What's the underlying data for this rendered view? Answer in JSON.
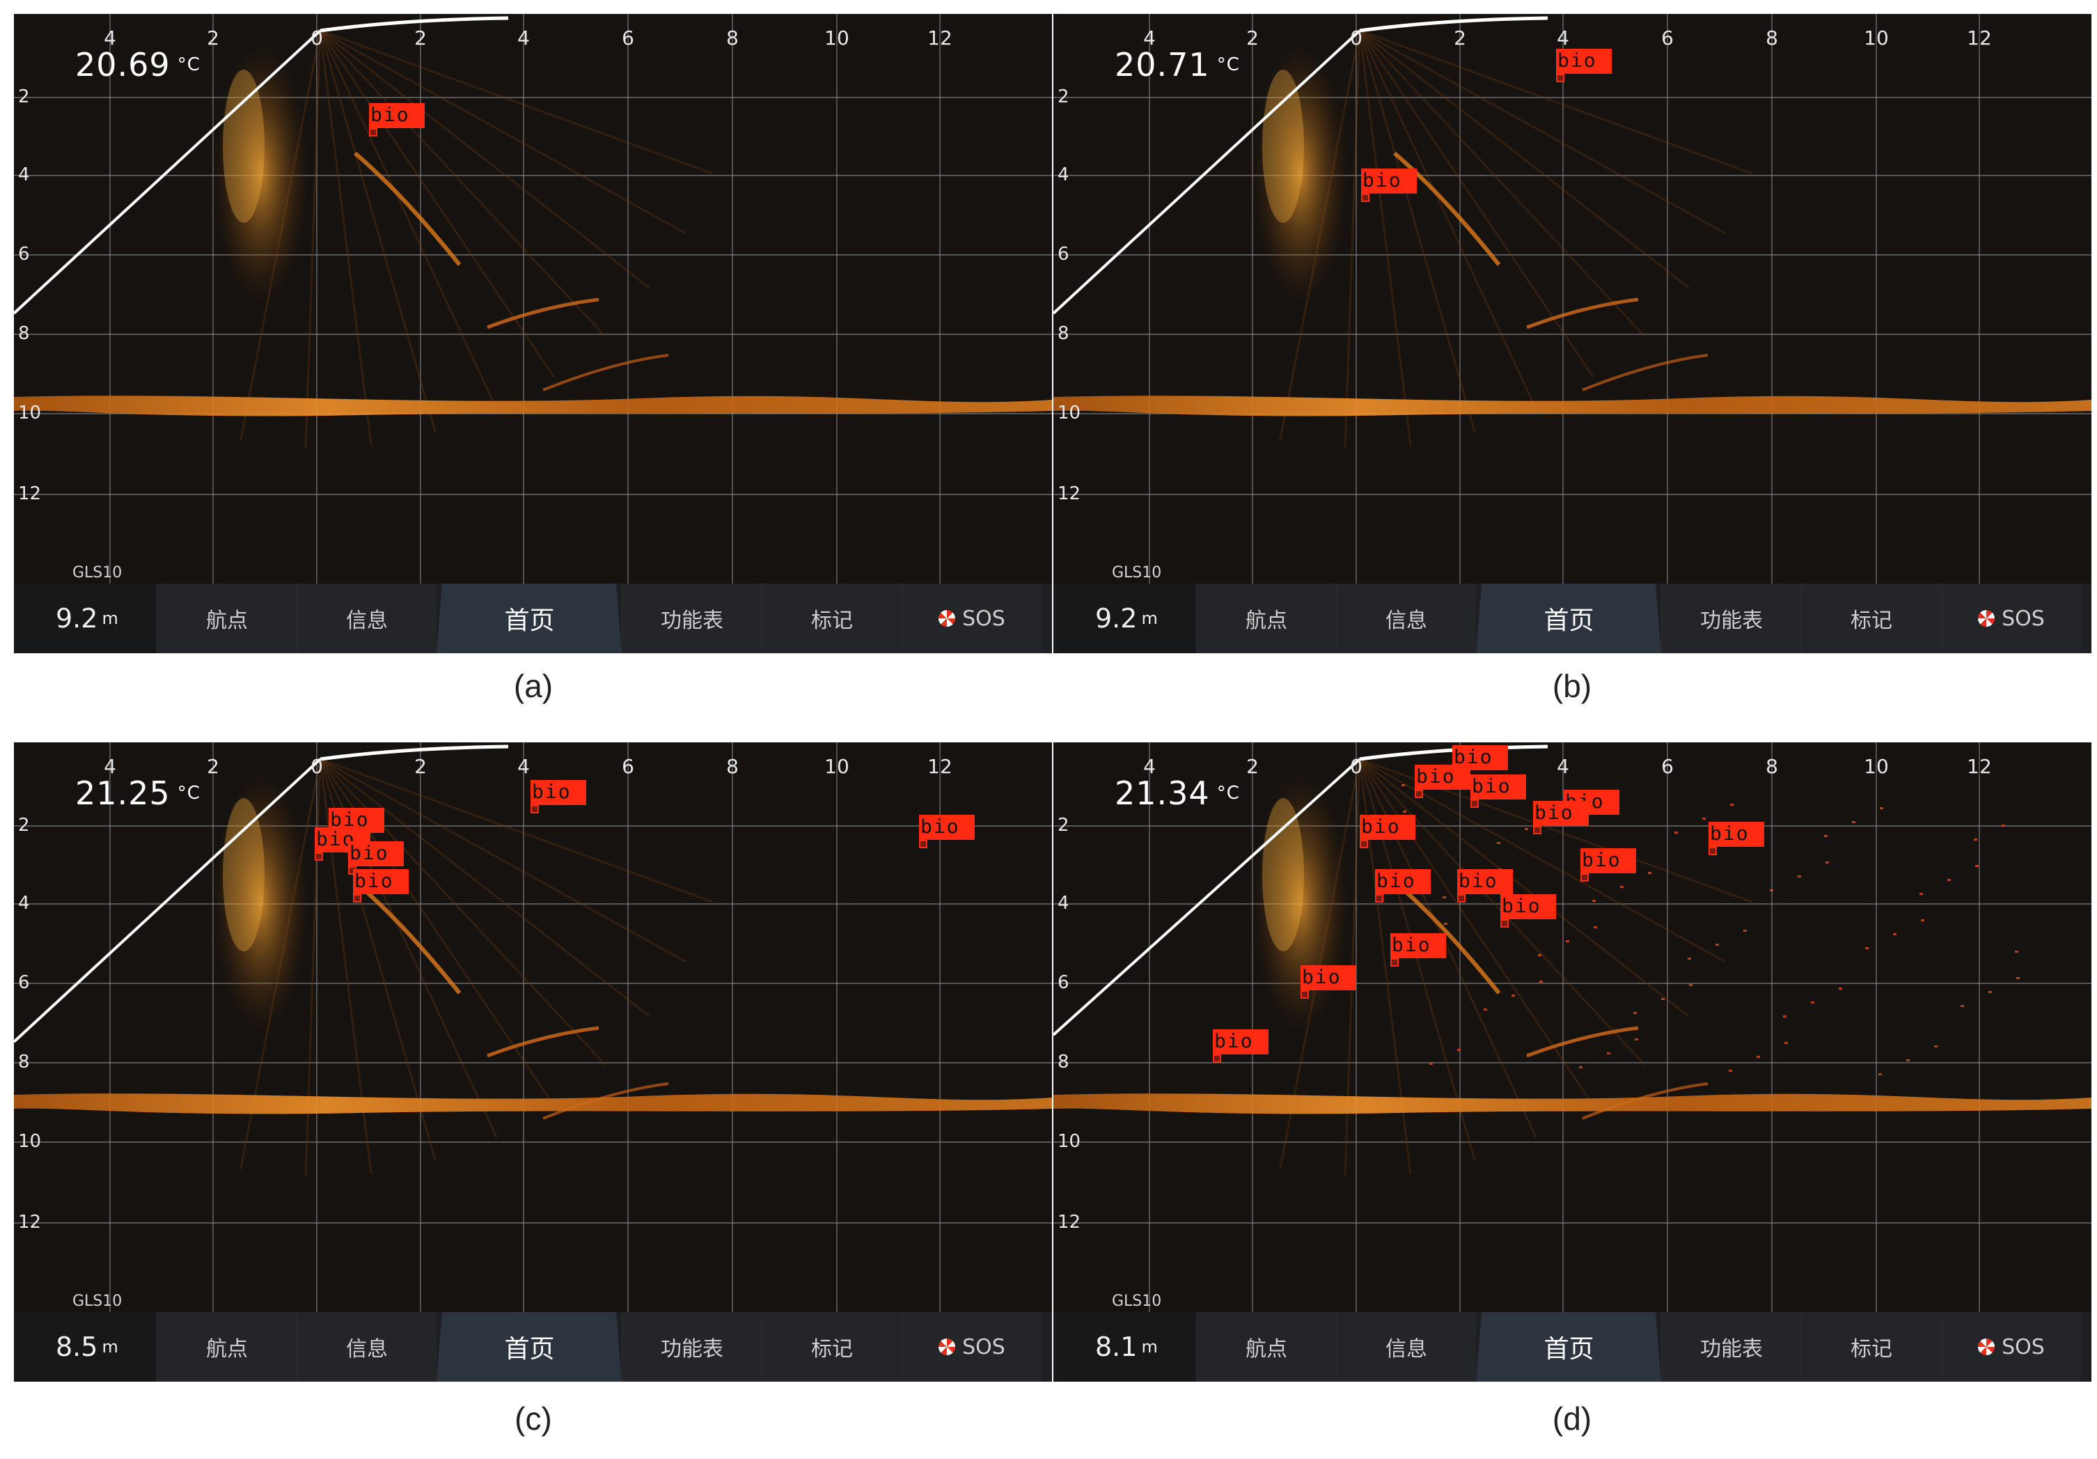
{
  "panels": [
    {
      "caption": "(a)",
      "temperature": "20.69",
      "temp_unit": "°C",
      "depth": "9.2",
      "depth_unit": "m",
      "transducer": "GLS10",
      "x_ticks": [
        "4",
        "2",
        "0",
        "2",
        "4",
        "6",
        "8",
        "10",
        "12"
      ],
      "y_ticks": [
        "2",
        "4",
        "6",
        "8",
        "10",
        "12"
      ],
      "detections": [
        {
          "label": "bio"
        }
      ]
    },
    {
      "caption": "(b)",
      "temperature": "20.71",
      "temp_unit": "°C",
      "depth": "9.2",
      "depth_unit": "m",
      "transducer": "GLS10",
      "x_ticks": [
        "4",
        "2",
        "0",
        "2",
        "4",
        "6",
        "8",
        "10",
        "12"
      ],
      "y_ticks": [
        "2",
        "4",
        "6",
        "8",
        "10",
        "12"
      ],
      "detections": [
        {
          "label": "bio"
        },
        {
          "label": "bio"
        }
      ]
    },
    {
      "caption": "(c)",
      "temperature": "21.25",
      "temp_unit": "°C",
      "depth": "8.5",
      "depth_unit": "m",
      "transducer": "GLS10",
      "x_ticks": [
        "4",
        "2",
        "0",
        "2",
        "4",
        "6",
        "8",
        "10",
        "12"
      ],
      "y_ticks": [
        "2",
        "4",
        "6",
        "8",
        "10",
        "12"
      ],
      "detections": [
        {
          "label": "bio"
        },
        {
          "label": "bio"
        },
        {
          "label": "bio"
        },
        {
          "label": "bio"
        },
        {
          "label": "bio"
        },
        {
          "label": "bio"
        }
      ]
    },
    {
      "caption": "(d)",
      "temperature": "21.34",
      "temp_unit": "°C",
      "depth": "8.1",
      "depth_unit": "m",
      "transducer": "GLS10",
      "x_ticks": [
        "4",
        "2",
        "0",
        "2",
        "4",
        "6",
        "8",
        "10",
        "12"
      ],
      "y_ticks": [
        "2",
        "4",
        "6",
        "8",
        "10",
        "12"
      ],
      "detections": [
        {
          "label": "bio"
        },
        {
          "label": "bio"
        },
        {
          "label": "bio"
        },
        {
          "label": "bio"
        },
        {
          "label": "bio"
        },
        {
          "label": "bio"
        },
        {
          "label": "bio"
        },
        {
          "label": "bio"
        },
        {
          "label": "bio"
        },
        {
          "label": "bio"
        },
        {
          "label": "bio"
        },
        {
          "label": "bio"
        },
        {
          "label": "bio"
        },
        {
          "label": "bio"
        }
      ]
    }
  ],
  "toolbar": {
    "waypoint": "航点",
    "info": "信息",
    "home": "首页",
    "menu": "功能表",
    "mark": "标记",
    "sos": "SOS"
  },
  "colors": {
    "background": "#15120f",
    "grid": "#9a9a9a",
    "sonar_return": "#e8801a",
    "detection_box": "#ff2a12",
    "home_tab": "#2c3440"
  }
}
